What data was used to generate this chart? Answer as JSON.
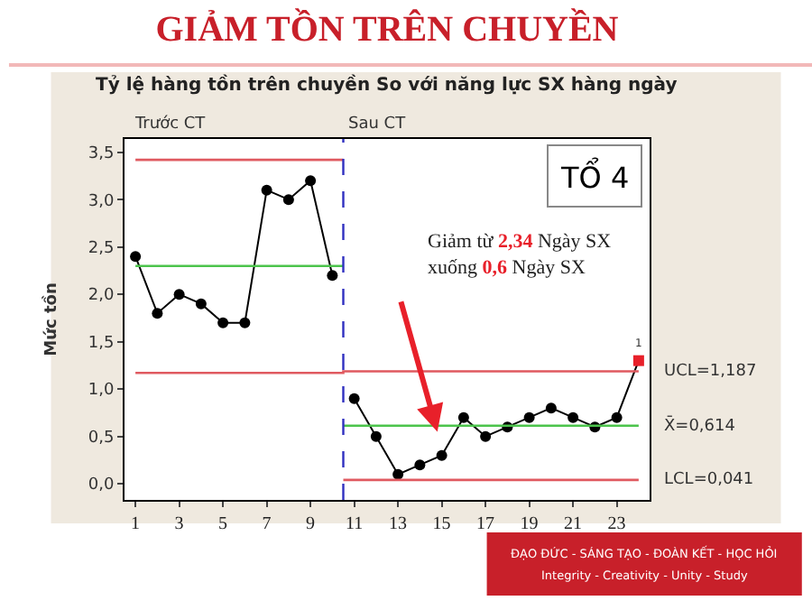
{
  "chart_data": {
    "type": "line",
    "title": "GIẢM TỒN TRÊN CHUYỀN",
    "subtitle": "Tỷ lệ hàng tồn trên chuyền So với năng lực SX hàng ngày",
    "ylabel": "Mức tồn",
    "xlim": [
      0.5,
      24.5
    ],
    "ylim": [
      -0.17,
      3.64
    ],
    "xticks": [
      1,
      3,
      5,
      7,
      9,
      11,
      13,
      15,
      17,
      19,
      21,
      23
    ],
    "yticks": [
      {
        "value": 0,
        "label": "0,0"
      },
      {
        "value": 0.5,
        "label": "0,5"
      },
      {
        "value": 1.0,
        "label": "1,0"
      },
      {
        "value": 1.5,
        "label": "1,5"
      },
      {
        "value": 2.0,
        "label": "2,0"
      },
      {
        "value": 2.5,
        "label": "2,5"
      },
      {
        "value": 3.0,
        "label": "3,0"
      },
      {
        "value": 3.5,
        "label": "3,5"
      }
    ],
    "marker": "circle",
    "series": [
      {
        "color": "#000000",
        "x": [
          1,
          2,
          3,
          4,
          5,
          6,
          7,
          8,
          9,
          10
        ],
        "values": [
          2.4,
          1.8,
          2.0,
          1.9,
          1.7,
          1.7,
          3.1,
          3.0,
          3.2,
          2.2
        ]
      },
      {
        "color": "#000000",
        "x": [
          11,
          12,
          13,
          14,
          15,
          16,
          17,
          18,
          19,
          20,
          21,
          22,
          23,
          24
        ],
        "values": [
          0.9,
          0.5,
          0.1,
          0.2,
          0.3,
          0.7,
          0.5,
          0.6,
          0.7,
          0.8,
          0.7,
          0.6,
          0.7,
          1.3
        ],
        "colors": [
          "#000000",
          "#000000",
          "#000000",
          "#000000",
          "#000000",
          "#000000",
          "#000000",
          "#000000",
          "#000000",
          "#000000",
          "#000000",
          "#000000",
          "#000000",
          "#e8202a"
        ]
      },
      {
        "color": "#e05a60",
        "marker": "none",
        "x": [
          1,
          10.5
        ],
        "values": [
          3.42,
          3.42
        ]
      },
      {
        "color": "#4cc44c",
        "marker": "none",
        "x": [
          1,
          10.5
        ],
        "values": [
          2.3,
          2.3
        ]
      },
      {
        "color": "#e05a60",
        "marker": "none",
        "x": [
          1,
          10.5,
          10.5,
          24
        ],
        "values": [
          1.17,
          1.17,
          1.187,
          1.187
        ]
      },
      {
        "color": "#4cc44c",
        "marker": "none",
        "x": [
          10.5,
          24
        ],
        "values": [
          0.614,
          0.614
        ]
      },
      {
        "color": "#e05a60",
        "marker": "none",
        "x": [
          10.5,
          24
        ],
        "values": [
          0.041,
          0.041
        ]
      }
    ],
    "ref_lines": [
      {
        "axis": "x",
        "value": 10.5,
        "color": "#3030c0",
        "line_style": "dashed"
      }
    ],
    "annotations": [
      "UCL=1,187",
      "X̄=0,614",
      "LCL=0,041",
      {
        "text": "1",
        "x": 24,
        "y": 1.3
      },
      "Trước CT",
      "Sau CT",
      "TỔ 4",
      "Giảm từ 2,34 Ngày SX xuống 0,6 Ngày SX",
      "ĐẠO ĐỨC - SÁNG TẠO - ĐOÀN KẾT - HỌC HỎI",
      "Integrity - Creativity - Unity - Study"
    ]
  }
}
